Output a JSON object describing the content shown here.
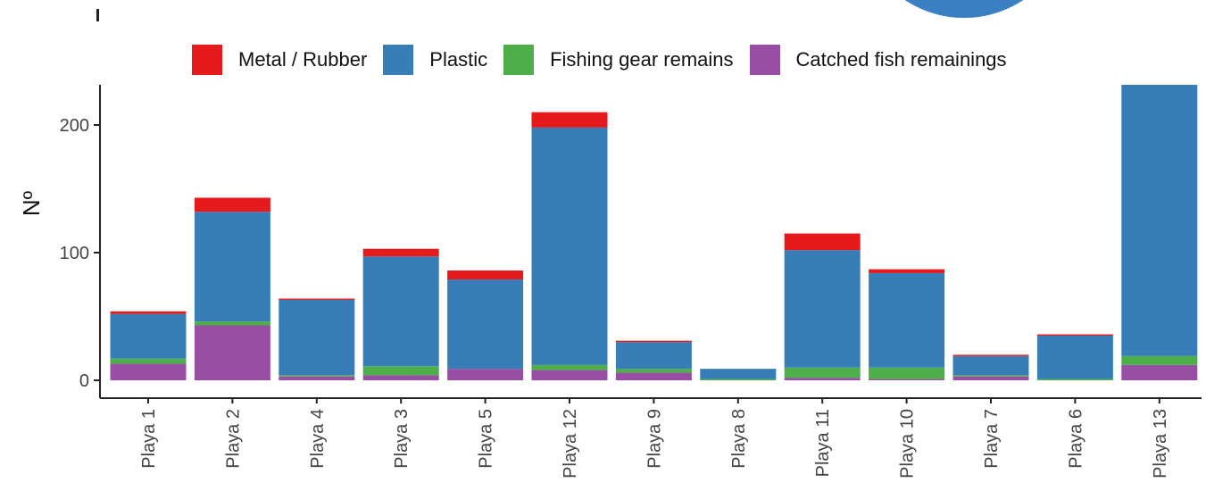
{
  "chart_data": {
    "type": "bar",
    "stacked": true,
    "ylabel": "Nº",
    "xlabel": "",
    "ylim": [
      0,
      230
    ],
    "yticks": [
      0,
      100,
      200
    ],
    "grid": false,
    "legend_position": "top",
    "categories": [
      "Playa 1",
      "Playa 2",
      "Playa 4",
      "Playa 3",
      "Playa 5",
      "Playa 12",
      "Playa 9",
      "Playa 8",
      "Playa 11",
      "Playa 10",
      "Playa 7",
      "Playa 6",
      "Playa 13"
    ],
    "series": [
      {
        "name": "Catched fish remainings",
        "color": "#984ea3",
        "values": [
          13,
          43,
          3,
          4,
          9,
          8,
          6,
          0,
          2,
          1,
          3,
          0,
          12
        ]
      },
      {
        "name": "Fishing gear remains",
        "color": "#4daf4a",
        "values": [
          4,
          3,
          1,
          7,
          0,
          4,
          3,
          1,
          8,
          9,
          1,
          1,
          7
        ]
      },
      {
        "name": "Plastic",
        "color": "#377eb8",
        "values": [
          35,
          86,
          59,
          86,
          70,
          186,
          21,
          8,
          92,
          74,
          15,
          34,
          214
        ]
      },
      {
        "name": "Metal / Rubber",
        "color": "#e41a1c",
        "values": [
          2,
          11,
          1,
          6,
          7,
          12,
          1,
          0,
          13,
          3,
          1,
          1,
          0
        ]
      }
    ],
    "legend_order": [
      "Metal / Rubber",
      "Plastic",
      "Fishing gear remains",
      "Catched fish remainings"
    ]
  }
}
